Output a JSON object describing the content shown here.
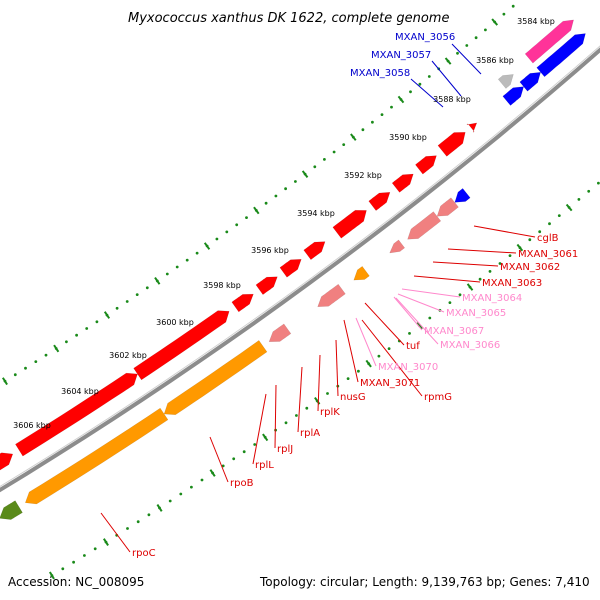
{
  "title": "Myxococcus xanthus DK 1622, complete genome",
  "footer": {
    "accession": "Accession: NC_008095",
    "stats": "Topology: circular; Length: 9,139,763 bp; Genes: 7,410"
  },
  "colors": {
    "backbone": "#8c8c8c",
    "tick": "#1a8a1a",
    "red": "#ff0000",
    "orange": "#ff9900",
    "blue": "#0000ff",
    "pink": "#ff3399",
    "salmon": "#f08080",
    "gray": "#bbbbbb",
    "olive": "#5a8a1a",
    "label_red": "#dd0000",
    "label_pink": "#ff88cc",
    "label_blue": "#0000cc"
  },
  "scale_labels": [
    "3584 kbp",
    "3586 kbp",
    "3588 kbp",
    "3590 kbp",
    "3592 kbp",
    "3594 kbp",
    "3596 kbp",
    "3598 kbp",
    "3600 kbp",
    "3602 kbp",
    "3604 kbp",
    "3606 kbp"
  ],
  "gene_labels": [
    {
      "text": "MXAN_3056",
      "color": "blue"
    },
    {
      "text": "MXAN_3057",
      "color": "blue"
    },
    {
      "text": "MXAN_3058",
      "color": "blue"
    },
    {
      "text": "cglB",
      "color": "red"
    },
    {
      "text": "MXAN_3061",
      "color": "red"
    },
    {
      "text": "MXAN_3062",
      "color": "red"
    },
    {
      "text": "MXAN_3063",
      "color": "red"
    },
    {
      "text": "MXAN_3064",
      "color": "pink"
    },
    {
      "text": "MXAN_3065",
      "color": "pink"
    },
    {
      "text": "MXAN_3067",
      "color": "pink"
    },
    {
      "text": "MXAN_3066",
      "color": "pink"
    },
    {
      "text": "tuf",
      "color": "red"
    },
    {
      "text": "MXAN_3070",
      "color": "pink"
    },
    {
      "text": "MXAN_3071",
      "color": "red"
    },
    {
      "text": "rpmG",
      "color": "red"
    },
    {
      "text": "nusG",
      "color": "red"
    },
    {
      "text": "rplK",
      "color": "red"
    },
    {
      "text": "rplA",
      "color": "red"
    },
    {
      "text": "rplJ",
      "color": "red"
    },
    {
      "text": "rplL",
      "color": "red"
    },
    {
      "text": "rpoB",
      "color": "red"
    },
    {
      "text": "rpoC",
      "color": "red"
    }
  ]
}
